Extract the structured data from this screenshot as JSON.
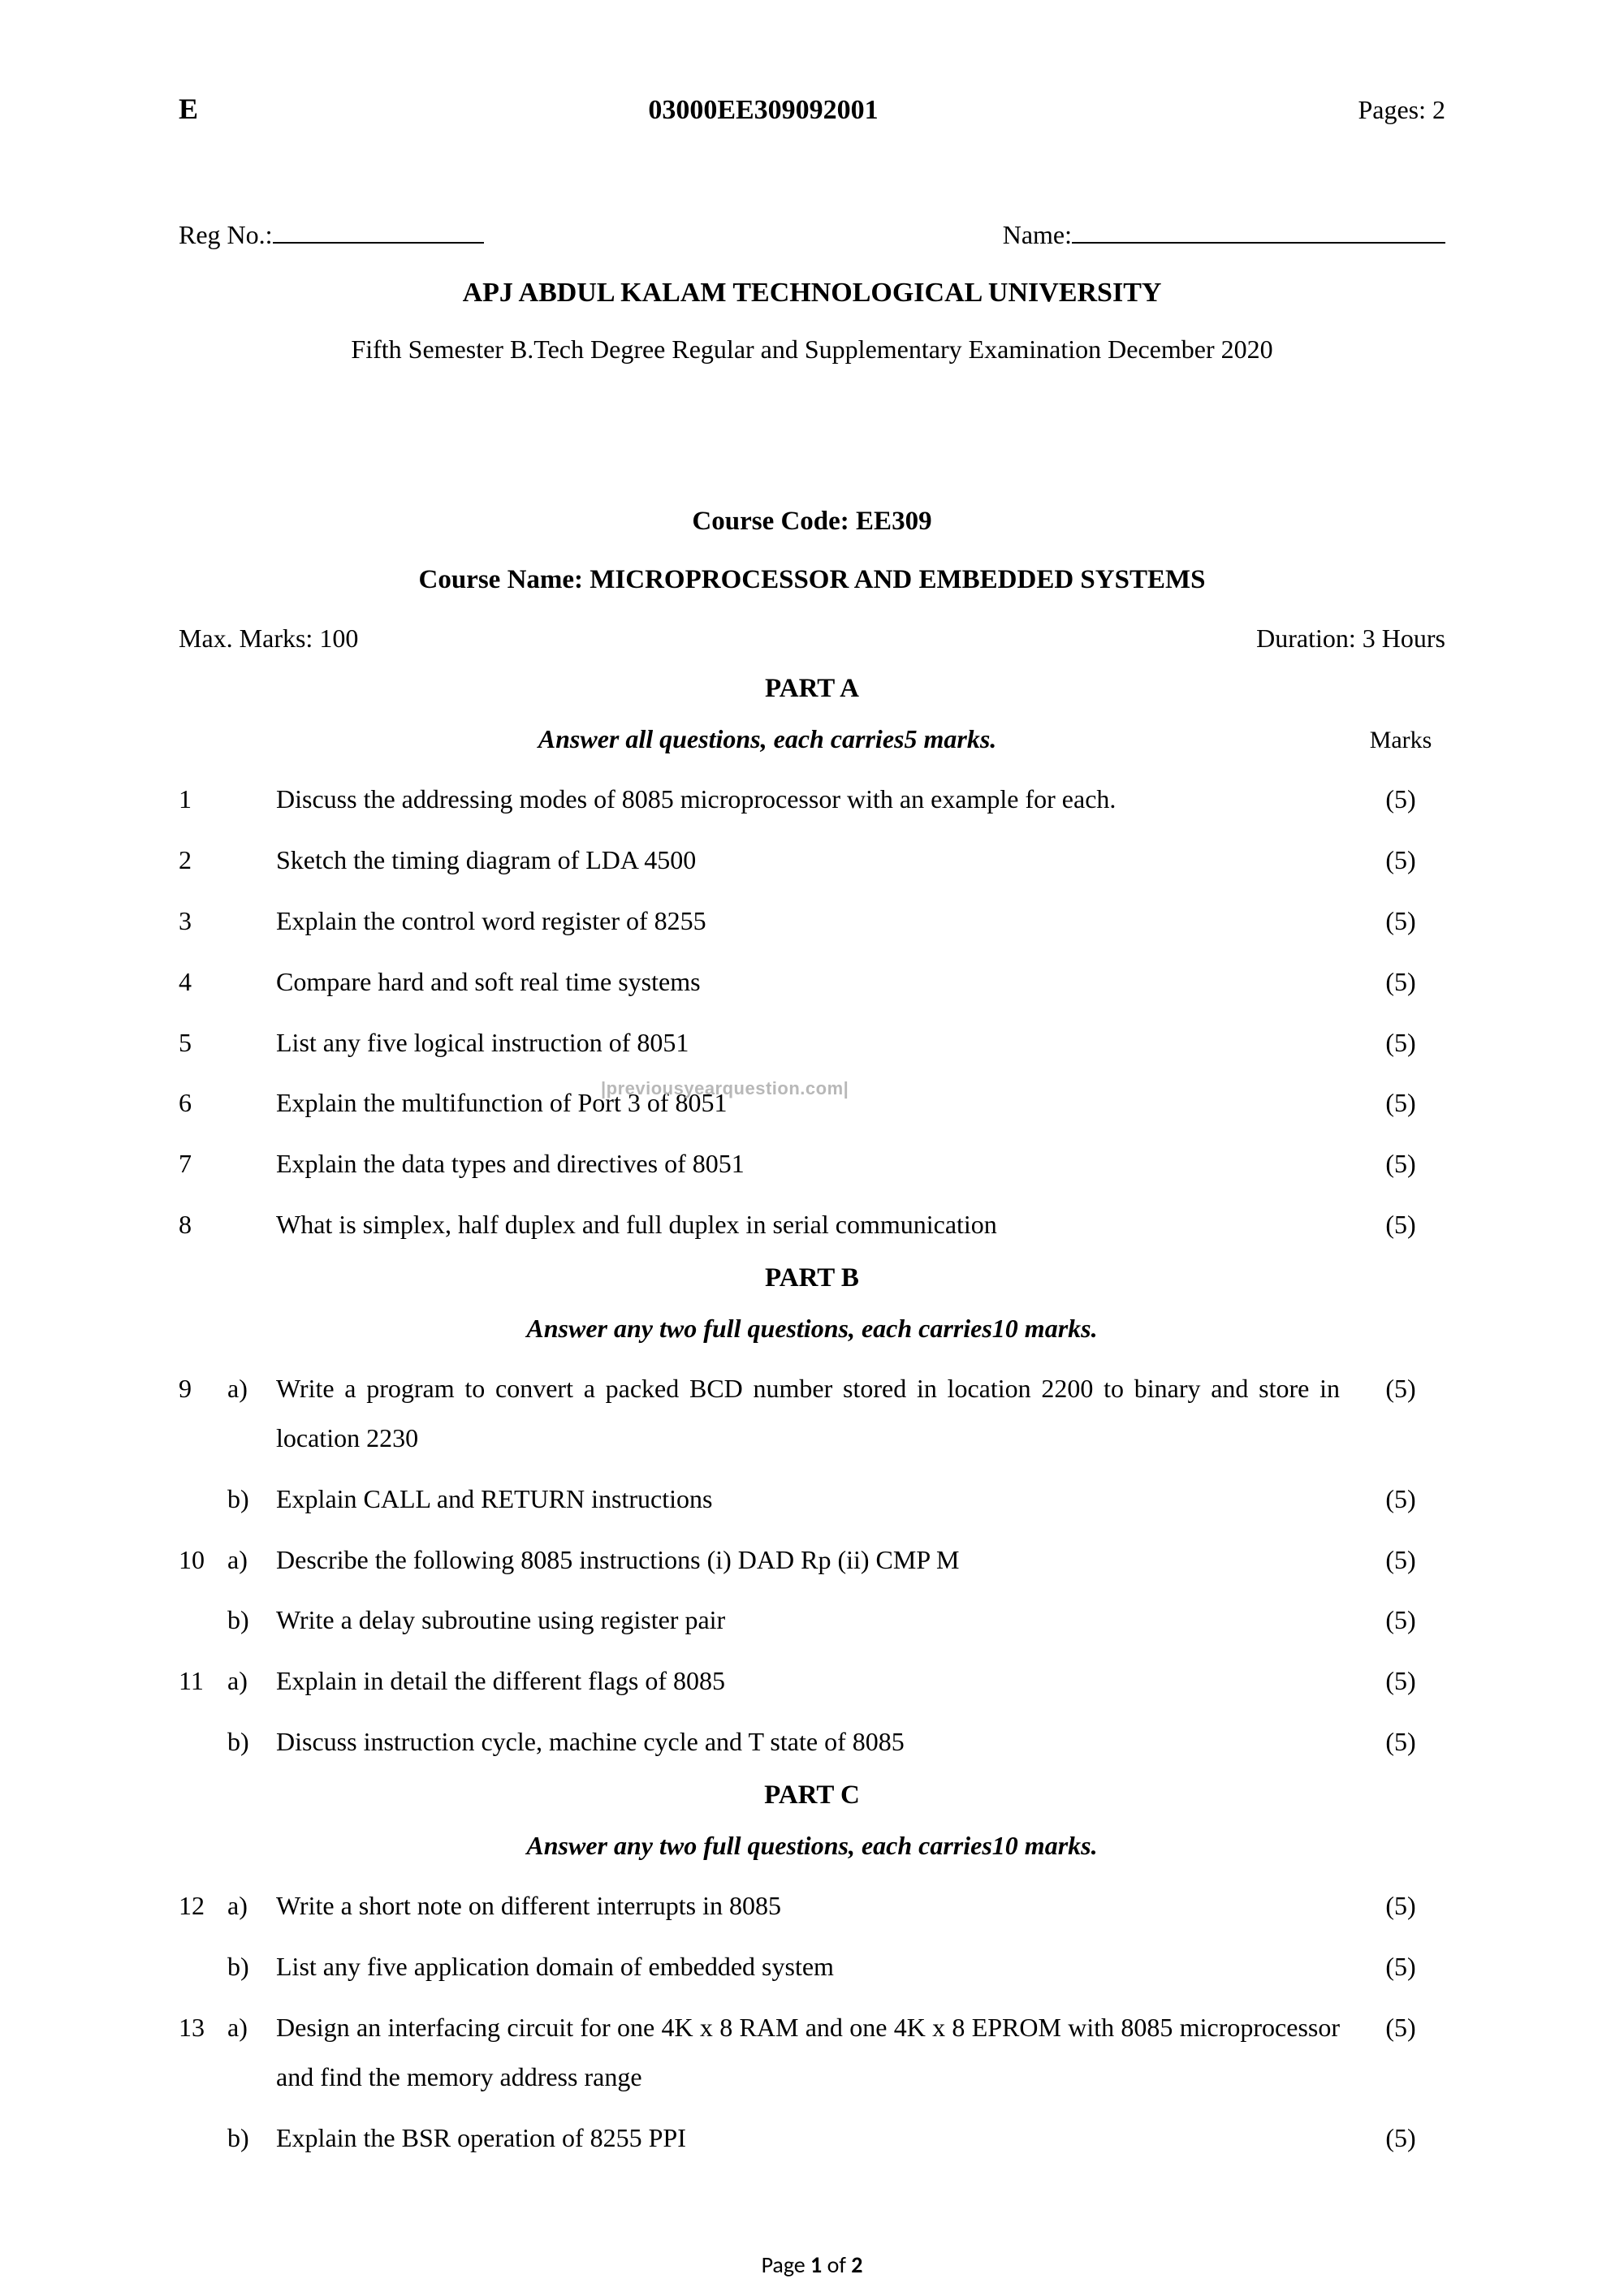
{
  "header": {
    "left": "E",
    "code": "03000EE309092001",
    "pages": "Pages: 2"
  },
  "reg_label": "Reg No.:",
  "name_label": "Name:",
  "university": "APJ ABDUL KALAM TECHNOLOGICAL UNIVERSITY",
  "exam_title": "Fifth Semester B.Tech Degree Regular and Supplementary Examination December 2020",
  "course_code": "Course Code: EE309",
  "course_name": "Course Name: MICROPROCESSOR AND EMBEDDED SYSTEMS",
  "max_marks": "Max. Marks: 100",
  "duration": "Duration: 3 Hours",
  "marks_header": "Marks",
  "watermark": "|previousyearquestion.com|",
  "part_a": {
    "title": "PART A",
    "instruction": "Answer all questions, each carries5 marks.",
    "questions": [
      {
        "num": "1",
        "sub": "",
        "text": "Discuss the addressing modes of 8085 microprocessor with an example for each.",
        "marks": "(5)"
      },
      {
        "num": "2",
        "sub": "",
        "text": "Sketch the timing diagram of  LDA 4500",
        "marks": "(5)"
      },
      {
        "num": "3",
        "sub": "",
        "text": "Explain the control word register of 8255",
        "marks": "(5)"
      },
      {
        "num": "4",
        "sub": "",
        "text": "Compare hard and soft real time systems",
        "marks": "(5)"
      },
      {
        "num": "5",
        "sub": "",
        "text": "List any five logical instruction of 8051",
        "marks": "(5)"
      },
      {
        "num": "6",
        "sub": "",
        "text": "Explain the multifunction of Port 3 of 8051",
        "marks": "(5)"
      },
      {
        "num": "7",
        "sub": "",
        "text": "Explain the data types and directives of 8051",
        "marks": "(5)"
      },
      {
        "num": "8",
        "sub": "",
        "text": "What is simplex, half duplex and full duplex in serial communication",
        "marks": "(5)"
      }
    ]
  },
  "part_b": {
    "title": "PART B",
    "instruction": "Answer any two full questions, each carries10 marks.",
    "questions": [
      {
        "num": "9",
        "sub": "a)",
        "text": "Write a program to convert a packed BCD number stored in location 2200 to binary and store in location 2230",
        "marks": "(5)"
      },
      {
        "num": "",
        "sub": "b)",
        "text": "Explain CALL and RETURN instructions",
        "marks": "(5)"
      },
      {
        "num": "10",
        "sub": "a)",
        "text": "Describe the following 8085 instructions (i) DAD Rp  (ii) CMP M",
        "marks": "(5)"
      },
      {
        "num": "",
        "sub": "b)",
        "text": "Write a delay subroutine using  register pair",
        "marks": "(5)"
      },
      {
        "num": "11",
        "sub": "a)",
        "text": "Explain in detail the different flags of 8085",
        "marks": "(5)"
      },
      {
        "num": "",
        "sub": "b)",
        "text": "Discuss instruction cycle, machine cycle and T state of 8085",
        "marks": "(5)"
      }
    ]
  },
  "part_c": {
    "title": "PART C",
    "instruction": "Answer any two full questions, each carries10 marks.",
    "questions": [
      {
        "num": "12",
        "sub": "a)",
        "text": "Write a short note on different interrupts in 8085",
        "marks": "(5)"
      },
      {
        "num": "",
        "sub": "b)",
        "text": "List any five application domain of embedded system",
        "marks": "(5)"
      },
      {
        "num": "13",
        "sub": "a)",
        "text": "Design an interfacing circuit for one 4K x 8 RAM and one 4K x 8  EPROM with 8085 microprocessor and find the memory address range",
        "marks": "(5)"
      },
      {
        "num": "",
        "sub": "b)",
        "text": "Explain the BSR operation of 8255 PPI",
        "marks": "(5)"
      }
    ]
  },
  "footer": {
    "prefix": "Page ",
    "current": "1",
    "mid": " of ",
    "total": "2"
  }
}
